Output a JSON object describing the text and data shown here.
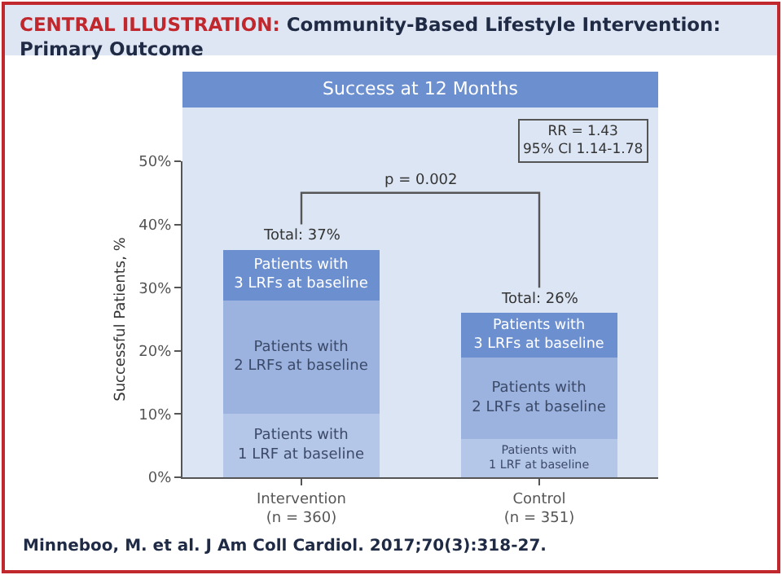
{
  "chart_data": {
    "type": "bar",
    "stacked": true,
    "title": "CENTRAL ILLUSTRATION: Community-Based Lifestyle Intervention: Primary Outcome",
    "subtitle": "Success at 12 Months",
    "ylabel": "Successful Patients, %",
    "categories": [
      "Intervention\n(n = 360)",
      "Control\n(n = 351)"
    ],
    "series": [
      {
        "name": "Patients with\n1 LRF at baseline",
        "color": "#b5c7e8",
        "values": [
          10,
          6
        ]
      },
      {
        "name": "Patients with\n2 LRFs at baseline",
        "color": "#9cb2df",
        "values": [
          18,
          13
        ]
      },
      {
        "name": "Patients with\n3 LRFs at baseline",
        "color": "#6c8fd0",
        "values": [
          8,
          7
        ]
      }
    ],
    "totals": [
      "Total: 37%",
      "Total: 26%"
    ],
    "ylim": [
      0,
      50
    ],
    "yticks": [
      {
        "value": 0,
        "label": "0%"
      },
      {
        "value": 10,
        "label": "10%"
      },
      {
        "value": 20,
        "label": "20%"
      },
      {
        "value": 30,
        "label": "30%"
      },
      {
        "value": 40,
        "label": "40%"
      },
      {
        "value": 50,
        "label": "50%"
      }
    ],
    "annotations": [
      "p = 0.002",
      "RR = 1.43\n95% CI 1.14-1.78",
      "Minneboo, M. et al. J Am Coll Cardiol. 2017;70(3):318-27."
    ],
    "grid": false,
    "legend": false
  }
}
